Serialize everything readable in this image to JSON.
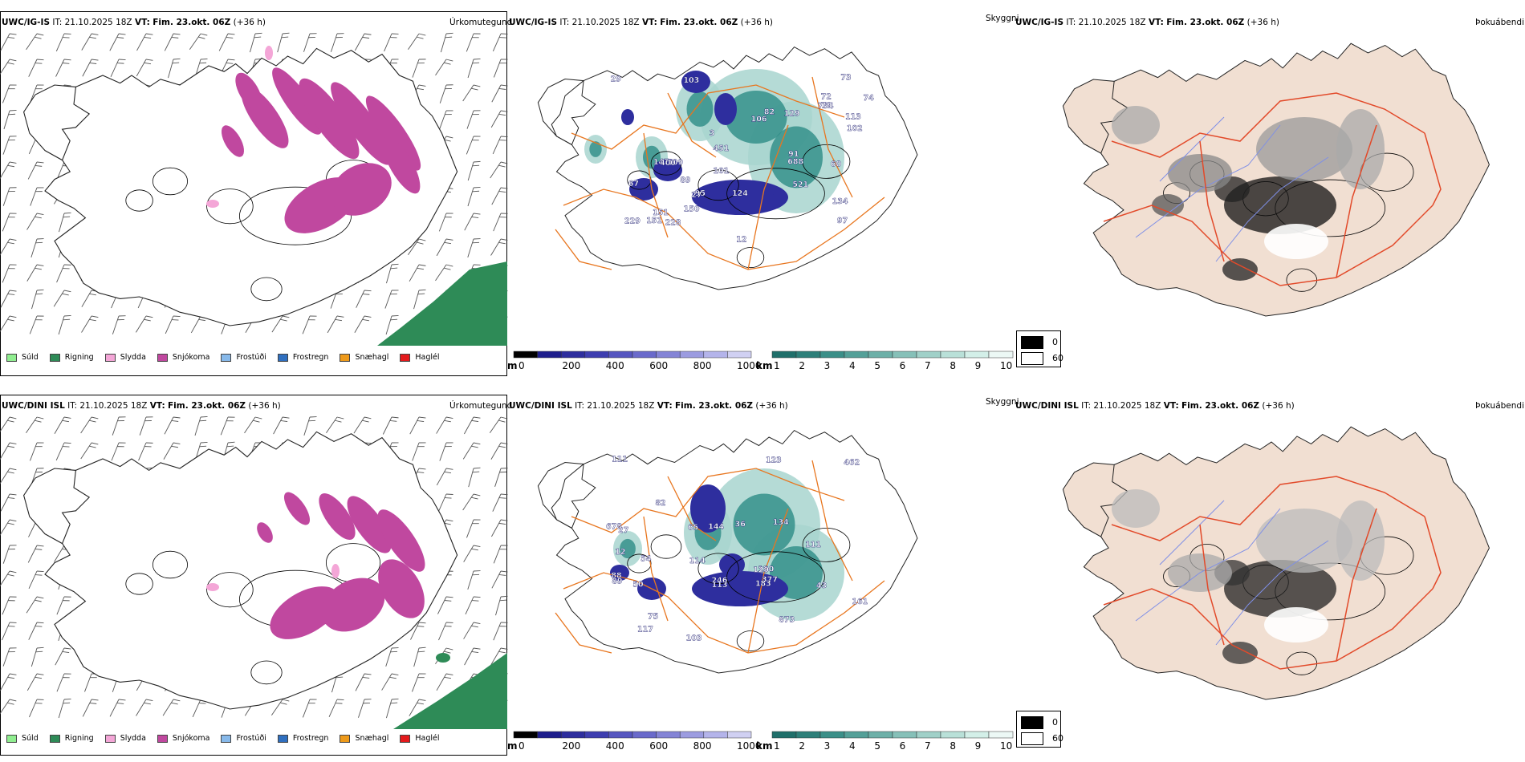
{
  "rows": [
    {
      "model_short": "UWC/IG-IS",
      "precip_title": {
        "model": "UWC/IG-IS",
        "it_label": "IT:",
        "it_value": "21.10.2025 18Z",
        "vt_label": "VT:",
        "vt_value": "Fim. 23.okt. 06Z",
        "lead": "(+36 h)"
      },
      "precip_right": "Úrkomutegund",
      "cloud_title": {
        "model": "UWC/IG-IS",
        "it_label": "IT:",
        "it_value": "21.10.2025 18Z",
        "vt_label": "VT:",
        "vt_value": "Fim. 23.okt. 06Z",
        "lead": "(+36 h)"
      },
      "cloud_right": "Skyggni",
      "fog_title": {
        "model": "UWC/IG-IS",
        "it_label": "IT:",
        "it_value": "21.10.2025 18Z",
        "vt_label": "VT:",
        "vt_value": "Fim. 23.okt. 06Z",
        "lead": "(+36 h)"
      },
      "fog_right": "Þokuábendi",
      "ceiling_labels": [
        "229",
        "521",
        "82",
        "688",
        "97",
        "754",
        "103",
        "124",
        "106",
        "228",
        "60",
        "151",
        "72",
        "27",
        "29",
        "3",
        "109",
        "451",
        "150",
        "102",
        "129",
        "134",
        "91",
        "151",
        "101",
        "113",
        "147",
        "89",
        "73",
        "67",
        "70",
        "74",
        "400",
        "95",
        "12"
      ]
    },
    {
      "model_short": "UWC/DINI ISL",
      "precip_title": {
        "model": "UWC/DINI ISL",
        "it_label": "IT:",
        "it_value": "21.10.2025 18Z",
        "vt_label": "VT:",
        "vt_value": "Fim. 23.okt. 06Z",
        "lead": "(+36 h)"
      },
      "precip_right": "Úrkomutegund",
      "cloud_title": {
        "model": "UWC/DINI ISL",
        "it_label": "IT:",
        "it_value": "21.10.2025 18Z",
        "vt_label": "VT:",
        "vt_value": "Fim. 23.okt. 06Z",
        "lead": "(+36 h)"
      },
      "cloud_right": "Skyggni",
      "fog_title": {
        "model": "UWC/DINI ISL",
        "it_label": "IT:",
        "it_value": "21.10.2025 18Z",
        "vt_label": "VT:",
        "vt_value": "Fim. 23.okt. 06Z",
        "lead": "(+36 h)"
      },
      "fog_right": "Þokuábendi",
      "ceiling_labels": [
        "377",
        "27",
        "462",
        "183",
        "114",
        "144",
        "111",
        "120",
        "65",
        "36",
        "75",
        "678",
        "50",
        "246",
        "43",
        "161",
        "134",
        "89",
        "103",
        "82",
        "88",
        "129",
        "113",
        "117",
        "111",
        "123",
        "873",
        "12",
        "54"
      ]
    }
  ],
  "precip_legend": [
    {
      "label": "Súld",
      "color": "#90ee90"
    },
    {
      "label": "Rigning",
      "color": "#2e8b57"
    },
    {
      "label": "Slydda",
      "color": "#f4a6d7"
    },
    {
      "label": "Snjókoma",
      "color": "#c0489f"
    },
    {
      "label": "Frostúði",
      "color": "#87b9ea"
    },
    {
      "label": "Frostregn",
      "color": "#2f6fbf"
    },
    {
      "label": "Snæhagl",
      "color": "#ee9a1a"
    },
    {
      "label": "Haglél",
      "color": "#e41a1c"
    }
  ],
  "ceiling_scale": {
    "unit": "m",
    "ticks": [
      "0",
      "200",
      "400",
      "600",
      "800",
      "1000"
    ]
  },
  "vis_scale": {
    "unit": "km",
    "ticks": [
      "1",
      "2",
      "3",
      "4",
      "5",
      "6",
      "7",
      "8",
      "9",
      "10"
    ]
  },
  "fog_legend": [
    {
      "label": "0",
      "color": "#000000"
    },
    {
      "label": "60",
      "color": "#ffffff"
    }
  ],
  "colors": {
    "snow": "#c0489f",
    "sleet": "#f4a6d7",
    "rain_sea": "#2e8b57",
    "ceiling_low": "#2e2e9e",
    "ceiling_mid": "#6a6acb",
    "vis_teal": "#2d8c86",
    "vis_light": "#a8d5cf",
    "roads": "#e8761f",
    "land_fog": "#f1dfd2",
    "roads_red": "#e24a2a",
    "rivers_blue": "#7f8fe6"
  }
}
